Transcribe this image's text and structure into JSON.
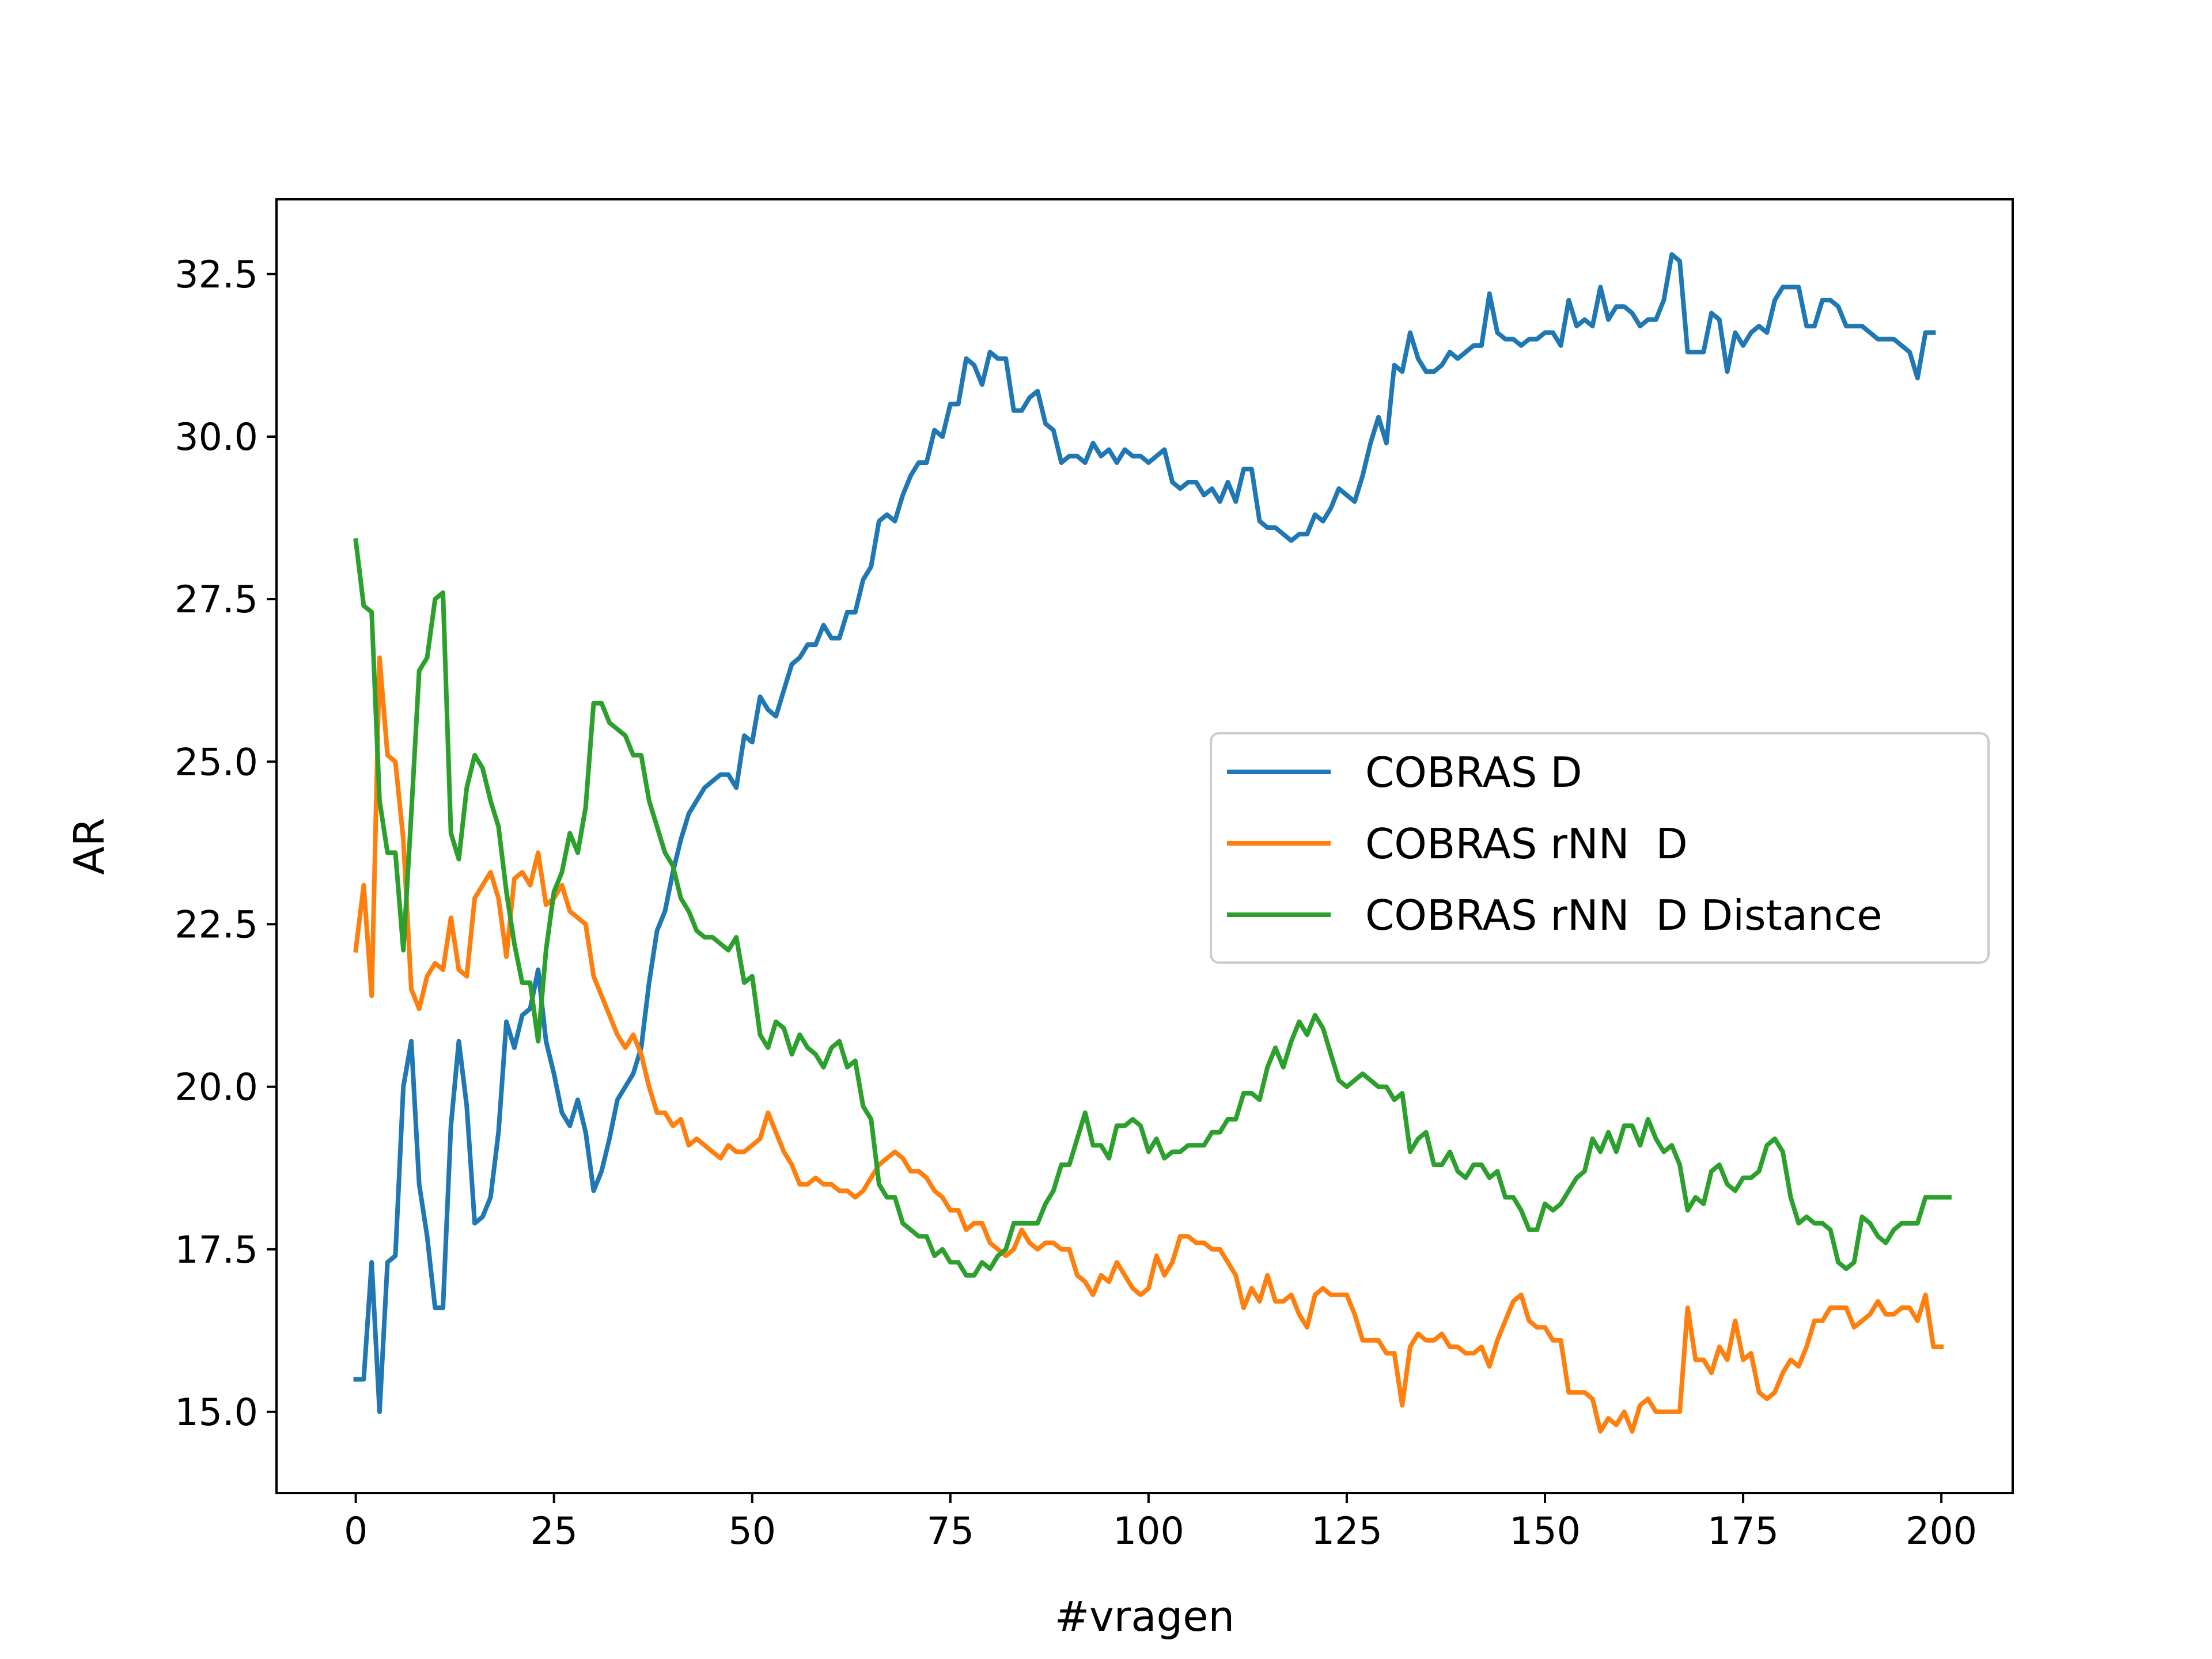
{
  "chart_data": {
    "type": "line",
    "title": "",
    "xlabel": "#vragen",
    "ylabel": "AR",
    "xlim": [
      -10,
      209
    ],
    "ylim": [
      13.75,
      33.65
    ],
    "xticks": [
      0,
      25,
      50,
      75,
      100,
      125,
      150,
      175,
      200
    ],
    "yticks": [
      15.0,
      17.5,
      20.0,
      22.5,
      25.0,
      27.5,
      30.0,
      32.5
    ],
    "ytick_labels": [
      "15.0",
      "17.5",
      "20.0",
      "22.5",
      "25.0",
      "27.5",
      "30.0",
      "32.5"
    ],
    "grid": false,
    "legend_position": "center-right",
    "x_start": 0,
    "x_step": 1,
    "series": [
      {
        "name": "COBRAS D",
        "color": "#1f77b4",
        "values": [
          15.5,
          15.5,
          17.3,
          15.0,
          17.3,
          17.4,
          20.0,
          20.7,
          18.5,
          17.7,
          16.6,
          16.6,
          19.4,
          20.7,
          19.7,
          17.9,
          18.0,
          18.3,
          19.3,
          21.0,
          20.6,
          21.1,
          21.2,
          21.8,
          20.7,
          20.2,
          19.6,
          19.4,
          19.8,
          19.3,
          18.4,
          18.7,
          19.2,
          19.8,
          20.0,
          20.2,
          20.6,
          21.6,
          22.4,
          22.7,
          23.3,
          23.8,
          24.2,
          24.4,
          24.6,
          24.7,
          24.8,
          24.8,
          24.6,
          25.4,
          25.3,
          26.0,
          25.8,
          25.7,
          26.1,
          26.5,
          26.6,
          26.8,
          26.8,
          27.1,
          26.9,
          26.9,
          27.3,
          27.3,
          27.8,
          28.0,
          28.7,
          28.8,
          28.7,
          29.1,
          29.4,
          29.6,
          29.6,
          30.1,
          30.0,
          30.5,
          30.5,
          31.2,
          31.1,
          30.8,
          31.3,
          31.2,
          31.2,
          30.4,
          30.4,
          30.6,
          30.7,
          30.2,
          30.1,
          29.6,
          29.7,
          29.7,
          29.6,
          29.9,
          29.7,
          29.8,
          29.6,
          29.8,
          29.7,
          29.7,
          29.6,
          29.7,
          29.8,
          29.3,
          29.2,
          29.3,
          29.3,
          29.1,
          29.2,
          29.0,
          29.3,
          29.0,
          29.5,
          29.5,
          28.7,
          28.6,
          28.6,
          28.5,
          28.4,
          28.5,
          28.5,
          28.8,
          28.7,
          28.9,
          29.2,
          29.1,
          29.0,
          29.4,
          29.9,
          30.3,
          29.9,
          31.1,
          31.0,
          31.6,
          31.2,
          31.0,
          31.0,
          31.1,
          31.3,
          31.2,
          31.3,
          31.4,
          31.4,
          32.2,
          31.6,
          31.5,
          31.5,
          31.4,
          31.5,
          31.5,
          31.6,
          31.6,
          31.4,
          32.1,
          31.7,
          31.8,
          31.7,
          32.3,
          31.8,
          32.0,
          32.0,
          31.9,
          31.7,
          31.8,
          31.8,
          32.1,
          32.8,
          32.7,
          31.3,
          31.3,
          31.3,
          31.9,
          31.8,
          31.0,
          31.6,
          31.4,
          31.6,
          31.7,
          31.6,
          32.1,
          32.3,
          32.3,
          32.3,
          31.7,
          31.7,
          32.1,
          32.1,
          32.0,
          31.7,
          31.7,
          31.7,
          31.6,
          31.5,
          31.5,
          31.5,
          31.4,
          31.3,
          30.9,
          31.6,
          31.6
        ]
      },
      {
        "name": "COBRAS rNN  D",
        "color": "#ff7f0e",
        "values": [
          22.1,
          23.1,
          21.4,
          26.6,
          25.1,
          25.0,
          23.8,
          21.5,
          21.2,
          21.7,
          21.9,
          21.8,
          22.6,
          21.8,
          21.7,
          22.9,
          23.1,
          23.3,
          22.9,
          22.0,
          23.2,
          23.3,
          23.1,
          23.6,
          22.8,
          22.9,
          23.1,
          22.7,
          22.6,
          22.5,
          21.7,
          21.4,
          21.1,
          20.8,
          20.6,
          20.8,
          20.5,
          20.0,
          19.6,
          19.6,
          19.4,
          19.5,
          19.1,
          19.2,
          19.1,
          19.0,
          18.9,
          19.1,
          19.0,
          19.0,
          19.1,
          19.2,
          19.6,
          19.3,
          19.0,
          18.8,
          18.5,
          18.5,
          18.6,
          18.5,
          18.5,
          18.4,
          18.4,
          18.3,
          18.4,
          18.6,
          18.8,
          18.9,
          19.0,
          18.9,
          18.7,
          18.7,
          18.6,
          18.4,
          18.3,
          18.1,
          18.1,
          17.8,
          17.9,
          17.9,
          17.6,
          17.5,
          17.4,
          17.5,
          17.8,
          17.6,
          17.5,
          17.6,
          17.6,
          17.5,
          17.5,
          17.1,
          17.0,
          16.8,
          17.1,
          17.0,
          17.3,
          17.1,
          16.9,
          16.8,
          16.9,
          17.4,
          17.1,
          17.3,
          17.7,
          17.7,
          17.6,
          17.6,
          17.5,
          17.5,
          17.3,
          17.1,
          16.6,
          16.9,
          16.7,
          17.1,
          16.7,
          16.7,
          16.8,
          16.5,
          16.3,
          16.8,
          16.9,
          16.8,
          16.8,
          16.8,
          16.5,
          16.1,
          16.1,
          16.1,
          15.9,
          15.9,
          15.1,
          16.0,
          16.2,
          16.1,
          16.1,
          16.2,
          16.0,
          16.0,
          15.9,
          15.9,
          16.0,
          15.7,
          16.1,
          16.4,
          16.7,
          16.8,
          16.4,
          16.3,
          16.3,
          16.1,
          16.1,
          15.3,
          15.3,
          15.3,
          15.2,
          14.7,
          14.9,
          14.8,
          15.0,
          14.7,
          15.1,
          15.2,
          15.0,
          15.0,
          15.0,
          15.0,
          16.6,
          15.8,
          15.8,
          15.6,
          16.0,
          15.8,
          16.4,
          15.8,
          15.9,
          15.3,
          15.2,
          15.3,
          15.6,
          15.8,
          15.7,
          16.0,
          16.4,
          16.4,
          16.6,
          16.6,
          16.6,
          16.3,
          16.4,
          16.5,
          16.7,
          16.5,
          16.5,
          16.6,
          16.6,
          16.4,
          16.8,
          16.0,
          16.0
        ]
      },
      {
        "name": "COBRAS rNN  D Distance",
        "color": "#2ca02c",
        "values": [
          28.4,
          27.4,
          27.3,
          24.4,
          23.6,
          23.6,
          22.1,
          24.2,
          26.4,
          26.6,
          27.5,
          27.6,
          23.9,
          23.5,
          24.6,
          25.1,
          24.9,
          24.4,
          24.0,
          23.0,
          22.2,
          21.6,
          21.6,
          20.7,
          22.1,
          23.0,
          23.3,
          23.9,
          23.6,
          24.3,
          25.9,
          25.9,
          25.6,
          25.5,
          25.4,
          25.1,
          25.1,
          24.4,
          24.0,
          23.6,
          23.4,
          22.9,
          22.7,
          22.4,
          22.3,
          22.3,
          22.2,
          22.1,
          22.3,
          21.6,
          21.7,
          20.8,
          20.6,
          21.0,
          20.9,
          20.5,
          20.8,
          20.6,
          20.5,
          20.3,
          20.6,
          20.7,
          20.3,
          20.4,
          19.7,
          19.5,
          18.5,
          18.3,
          18.3,
          17.9,
          17.8,
          17.7,
          17.7,
          17.4,
          17.5,
          17.3,
          17.3,
          17.1,
          17.1,
          17.3,
          17.2,
          17.4,
          17.5,
          17.9,
          17.9,
          17.9,
          17.9,
          18.2,
          18.4,
          18.8,
          18.8,
          19.2,
          19.6,
          19.1,
          19.1,
          18.9,
          19.4,
          19.4,
          19.5,
          19.4,
          19.0,
          19.2,
          18.9,
          19.0,
          19.0,
          19.1,
          19.1,
          19.1,
          19.3,
          19.3,
          19.5,
          19.5,
          19.9,
          19.9,
          19.8,
          20.3,
          20.6,
          20.3,
          20.7,
          21.0,
          20.8,
          21.1,
          20.9,
          20.5,
          20.1,
          20.0,
          20.1,
          20.2,
          20.1,
          20.0,
          20.0,
          19.8,
          19.9,
          19.0,
          19.2,
          19.3,
          18.8,
          18.8,
          19.0,
          18.7,
          18.6,
          18.8,
          18.8,
          18.6,
          18.7,
          18.3,
          18.3,
          18.1,
          17.8,
          17.8,
          18.2,
          18.1,
          18.2,
          18.4,
          18.6,
          18.7,
          19.2,
          19.0,
          19.3,
          19.0,
          19.4,
          19.4,
          19.1,
          19.5,
          19.2,
          19.0,
          19.1,
          18.8,
          18.1,
          18.3,
          18.2,
          18.7,
          18.8,
          18.5,
          18.4,
          18.6,
          18.6,
          18.7,
          19.1,
          19.2,
          19.0,
          18.3,
          17.9,
          18.0,
          17.9,
          17.9,
          17.8,
          17.3,
          17.2,
          17.3,
          18.0,
          17.9,
          17.7,
          17.6,
          17.8,
          17.9,
          17.9,
          17.9,
          18.3,
          18.3,
          18.3,
          18.3
        ]
      }
    ]
  }
}
